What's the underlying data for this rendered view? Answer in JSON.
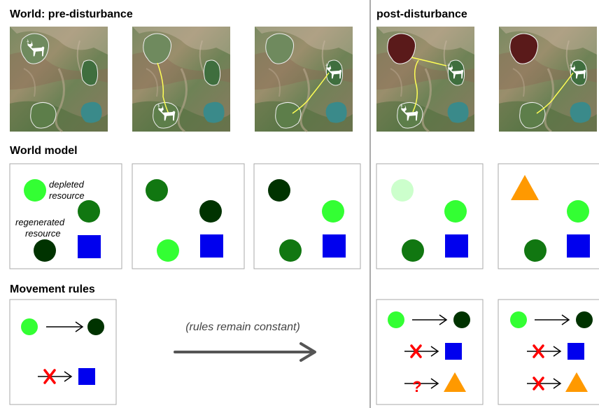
{
  "headings": {
    "world_pre": "World: pre-disturbance",
    "world_post": "post-disturbance",
    "world_model": "World model",
    "movement_rules": "Movement rules"
  },
  "legend": {
    "depleted_line1": "depleted",
    "depleted_line2": "resource",
    "regenerated_line1": "regenerated",
    "regenerated_line2": "resource"
  },
  "rules_caption": "(rules remain constant)",
  "question_mark": "?",
  "colors": {
    "depleted": "#33ff33",
    "medium": "#117711",
    "regenerated": "#003300",
    "faded": "#ccffcc",
    "square": "#0000ee",
    "triangle": "#ff9900",
    "cross": "#ff0000",
    "path": "#ffff55",
    "pond": "#3a8a8a",
    "disturbed": "#5a1a1a"
  },
  "icons": {
    "animal": "deer-icon",
    "arrow": "arrow-right-icon",
    "blocked": "cross-icon",
    "unknown": "question-icon"
  }
}
